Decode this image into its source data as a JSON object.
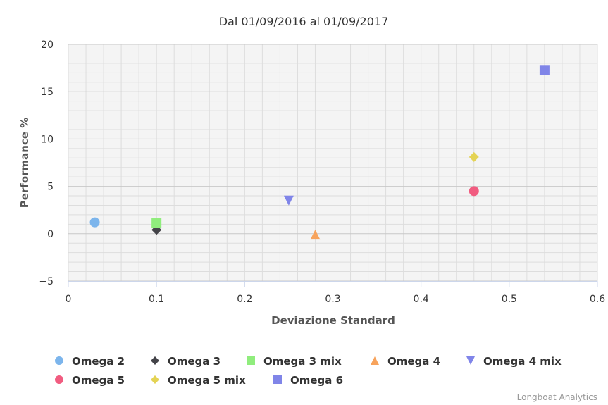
{
  "chart_data": {
    "type": "scatter",
    "title": "Dal 01/09/2016 al 01/09/2017",
    "xlabel": "Deviazione Standard",
    "ylabel": "Performance %",
    "xlim": [
      0,
      0.6
    ],
    "ylim": [
      -5,
      20
    ],
    "x_ticks": [
      "0",
      "0.1",
      "0.2",
      "0.3",
      "0.4",
      "0.5",
      "0.6"
    ],
    "y_ticks": [
      "−5",
      "0",
      "5",
      "10",
      "15",
      "20"
    ],
    "grid": true,
    "legend_position": "bottom",
    "series": [
      {
        "name": "Omega 2",
        "marker": "circle",
        "color": "#7cb5ec",
        "x": 0.03,
        "y": 1.2
      },
      {
        "name": "Omega 3",
        "marker": "diamond",
        "color": "#434348",
        "x": 0.1,
        "y": 0.4
      },
      {
        "name": "Omega 3 mix",
        "marker": "square",
        "color": "#90ed7d",
        "x": 0.1,
        "y": 1.1
      },
      {
        "name": "Omega 4",
        "marker": "triangle",
        "color": "#f7a35c",
        "x": 0.28,
        "y": -0.1
      },
      {
        "name": "Omega 4 mix",
        "marker": "triangle-down",
        "color": "#8085e9",
        "x": 0.25,
        "y": 3.5
      },
      {
        "name": "Omega 5",
        "marker": "circle",
        "color": "#f15c80",
        "x": 0.46,
        "y": 4.5
      },
      {
        "name": "Omega 5 mix",
        "marker": "diamond",
        "color": "#e4d354",
        "x": 0.46,
        "y": 8.1
      },
      {
        "name": "Omega 6",
        "marker": "square",
        "color": "#8085e8",
        "x": 0.54,
        "y": 17.3
      }
    ]
  },
  "credits": "Longboat Analytics"
}
